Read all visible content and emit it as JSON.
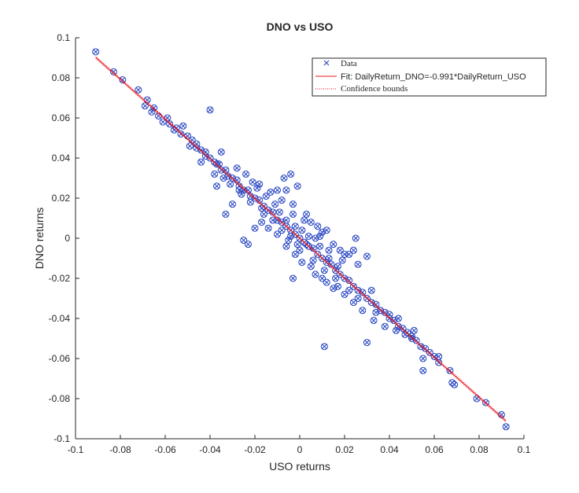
{
  "chart_data": {
    "type": "scatter",
    "title": "DNO vs USO",
    "xlabel": "USO returns",
    "ylabel": "DNO returns",
    "xlim": [
      -0.1,
      0.1
    ],
    "ylim": [
      -0.1,
      0.1
    ],
    "xticks": [
      "-0.1",
      "-0.08",
      "-0.06",
      "-0.04",
      "-0.02",
      "0",
      "0.02",
      "0.04",
      "0.06",
      "0.08",
      "0.1"
    ],
    "yticks": [
      "0.1",
      "0.08",
      "0.06",
      "0.04",
      "0.02",
      "0",
      "-0.02",
      "-0.04",
      "-0.06",
      "-0.08",
      "-0.1"
    ],
    "grid": false,
    "legend_position": "top-right",
    "legend": {
      "data_label": "Data",
      "fit_label": "Fit: DailyReturn_DNO=-0.991*DailyReturn_USO",
      "bounds_label": "Confidence bounds"
    },
    "fit": {
      "slope": -0.991,
      "intercept": 0,
      "x_range": [
        -0.091,
        0.092
      ]
    },
    "series": [
      {
        "name": "Data",
        "color": "#1f3fbf",
        "marker": "x-in-circle",
        "points": [
          [
            -0.091,
            0.093
          ],
          [
            -0.083,
            0.083
          ],
          [
            -0.079,
            0.079
          ],
          [
            -0.072,
            0.074
          ],
          [
            -0.068,
            0.069
          ],
          [
            -0.069,
            0.066
          ],
          [
            -0.065,
            0.065
          ],
          [
            -0.063,
            0.061
          ],
          [
            -0.059,
            0.06
          ],
          [
            -0.058,
            0.057
          ],
          [
            -0.055,
            0.055
          ],
          [
            -0.053,
            0.052
          ],
          [
            -0.05,
            0.051
          ],
          [
            -0.048,
            0.049
          ],
          [
            -0.046,
            0.047
          ],
          [
            -0.044,
            0.044
          ],
          [
            -0.042,
            0.043
          ],
          [
            -0.04,
            0.04
          ],
          [
            -0.038,
            0.038
          ],
          [
            -0.036,
            0.037
          ],
          [
            -0.035,
            0.034
          ],
          [
            -0.033,
            0.034
          ],
          [
            -0.032,
            0.031
          ],
          [
            -0.03,
            0.03
          ],
          [
            -0.028,
            0.029
          ],
          [
            -0.027,
            0.026
          ],
          [
            -0.025,
            0.024
          ],
          [
            -0.023,
            0.024
          ],
          [
            -0.022,
            0.021
          ],
          [
            -0.02,
            0.02
          ],
          [
            -0.018,
            0.019
          ],
          [
            -0.016,
            0.016
          ],
          [
            -0.014,
            0.014
          ],
          [
            -0.012,
            0.013
          ],
          [
            -0.01,
            0.009
          ],
          [
            -0.008,
            0.008
          ],
          [
            -0.006,
            0.006
          ],
          [
            -0.004,
            0.004
          ],
          [
            -0.002,
            0.002
          ],
          [
            0.0,
            0.0
          ],
          [
            0.002,
            -0.002
          ],
          [
            0.004,
            -0.004
          ],
          [
            0.006,
            -0.005
          ],
          [
            0.008,
            -0.008
          ],
          [
            0.01,
            -0.01
          ],
          [
            0.012,
            -0.012
          ],
          [
            0.014,
            -0.013
          ],
          [
            0.016,
            -0.016
          ],
          [
            0.018,
            -0.018
          ],
          [
            0.02,
            -0.02
          ],
          [
            0.022,
            -0.021
          ],
          [
            0.024,
            -0.024
          ],
          [
            0.026,
            -0.026
          ],
          [
            0.028,
            -0.027
          ],
          [
            0.03,
            -0.03
          ],
          [
            0.032,
            -0.032
          ],
          [
            0.034,
            -0.033
          ],
          [
            0.036,
            -0.036
          ],
          [
            0.038,
            -0.037
          ],
          [
            0.04,
            -0.04
          ],
          [
            0.042,
            -0.041
          ],
          [
            0.044,
            -0.044
          ],
          [
            0.046,
            -0.045
          ],
          [
            0.048,
            -0.047
          ],
          [
            0.05,
            -0.049
          ],
          [
            0.052,
            -0.051
          ],
          [
            0.054,
            -0.054
          ],
          [
            0.056,
            -0.055
          ],
          [
            0.058,
            -0.057
          ],
          [
            0.06,
            -0.059
          ],
          [
            0.062,
            -0.062
          ],
          [
            0.067,
            -0.066
          ],
          [
            0.068,
            -0.072
          ],
          [
            0.069,
            -0.073
          ],
          [
            0.079,
            -0.08
          ],
          [
            0.083,
            -0.082
          ],
          [
            0.09,
            -0.088
          ],
          [
            0.092,
            -0.094
          ],
          [
            -0.028,
            0.035
          ],
          [
            -0.035,
            0.043
          ],
          [
            -0.046,
            0.045
          ],
          [
            -0.024,
            0.032
          ],
          [
            -0.018,
            0.027
          ],
          [
            -0.013,
            0.023
          ],
          [
            -0.008,
            0.019
          ],
          [
            -0.003,
            0.017
          ],
          [
            -0.01,
            0.024
          ],
          [
            -0.006,
            0.024
          ],
          [
            -0.004,
            0.032
          ],
          [
            0.003,
            0.012
          ],
          [
            0.005,
            0.008
          ],
          [
            0.008,
            0.006
          ],
          [
            0.01,
            0.003
          ],
          [
            0.012,
            0.004
          ],
          [
            0.015,
            -0.003
          ],
          [
            0.018,
            -0.006
          ],
          [
            0.02,
            -0.008
          ],
          [
            -0.017,
            0.008
          ],
          [
            -0.014,
            0.005
          ],
          [
            -0.01,
            0.002
          ],
          [
            -0.006,
            -0.004
          ],
          [
            -0.002,
            -0.008
          ],
          [
            0.001,
            -0.012
          ],
          [
            0.005,
            -0.014
          ],
          [
            0.01,
            -0.02
          ],
          [
            0.015,
            -0.025
          ],
          [
            0.02,
            -0.028
          ],
          [
            0.024,
            -0.032
          ],
          [
            0.028,
            -0.036
          ],
          [
            0.033,
            -0.041
          ],
          [
            0.038,
            -0.044
          ],
          [
            0.043,
            -0.046
          ],
          [
            0.047,
            -0.048
          ],
          [
            -0.02,
            0.005
          ],
          [
            -0.025,
            -0.001
          ],
          [
            -0.023,
            -0.003
          ],
          [
            -0.037,
            0.026
          ],
          [
            -0.033,
            0.012
          ],
          [
            -0.03,
            0.017
          ],
          [
            -0.026,
            0.022
          ],
          [
            -0.037,
            0.037
          ],
          [
            -0.042,
            0.041
          ],
          [
            -0.052,
            0.056
          ],
          [
            0.024,
            -0.006
          ],
          [
            0.025,
            0.0
          ],
          [
            0.022,
            -0.008
          ],
          [
            0.026,
            -0.013
          ],
          [
            0.03,
            -0.009
          ],
          [
            0.03,
            -0.052
          ],
          [
            0.011,
            -0.054
          ],
          [
            0.055,
            -0.066
          ],
          [
            0.062,
            -0.059
          ],
          [
            0.055,
            -0.06
          ],
          [
            -0.04,
            0.064
          ],
          [
            -0.003,
            -0.02
          ],
          [
            -0.006,
            0.009
          ],
          [
            -0.001,
            0.026
          ],
          [
            -0.007,
            0.03
          ],
          [
            0.009,
            0.001
          ],
          [
            0.013,
            -0.006
          ],
          [
            0.007,
            0.0
          ],
          [
            0.003,
            -0.003
          ],
          [
            -0.003,
            0.012
          ],
          [
            -0.011,
            0.017
          ],
          [
            -0.015,
            0.021
          ],
          [
            -0.019,
            0.025
          ],
          [
            -0.021,
            0.028
          ],
          [
            -0.016,
            0.012
          ],
          [
            0.007,
            -0.018
          ],
          [
            0.012,
            -0.022
          ],
          [
            0.017,
            -0.024
          ],
          [
            0.022,
            -0.026
          ],
          [
            0.026,
            -0.03
          ],
          [
            0.034,
            -0.037
          ],
          [
            0.04,
            -0.038
          ],
          [
            0.044,
            -0.04
          ],
          [
            0.05,
            -0.05
          ],
          [
            0.051,
            -0.046
          ],
          [
            0.032,
            -0.026
          ],
          [
            0.019,
            -0.011
          ],
          [
            0.016,
            -0.02
          ],
          [
            0.011,
            -0.016
          ],
          [
            0.006,
            -0.011
          ],
          [
            -0.001,
            -0.003
          ],
          [
            -0.004,
            0.001
          ],
          [
            -0.008,
            0.004
          ],
          [
            -0.012,
            0.009
          ],
          [
            -0.017,
            0.015
          ],
          [
            -0.022,
            0.018
          ],
          [
            -0.027,
            0.024
          ],
          [
            -0.031,
            0.027
          ],
          [
            -0.034,
            0.03
          ],
          [
            -0.038,
            0.032
          ],
          [
            -0.044,
            0.038
          ],
          [
            -0.049,
            0.046
          ],
          [
            -0.056,
            0.054
          ],
          [
            -0.061,
            0.058
          ],
          [
            -0.066,
            0.063
          ],
          [
            -0.002,
            0.006
          ],
          [
            0.001,
            0.004
          ],
          [
            0.004,
            0.001
          ],
          [
            0.0,
            -0.006
          ],
          [
            -0.005,
            -0.001
          ],
          [
            0.009,
            -0.004
          ],
          [
            0.002,
            0.009
          ],
          [
            -0.009,
            0.013
          ],
          [
            0.013,
            -0.01
          ],
          [
            0.017,
            -0.014
          ]
        ]
      }
    ]
  }
}
